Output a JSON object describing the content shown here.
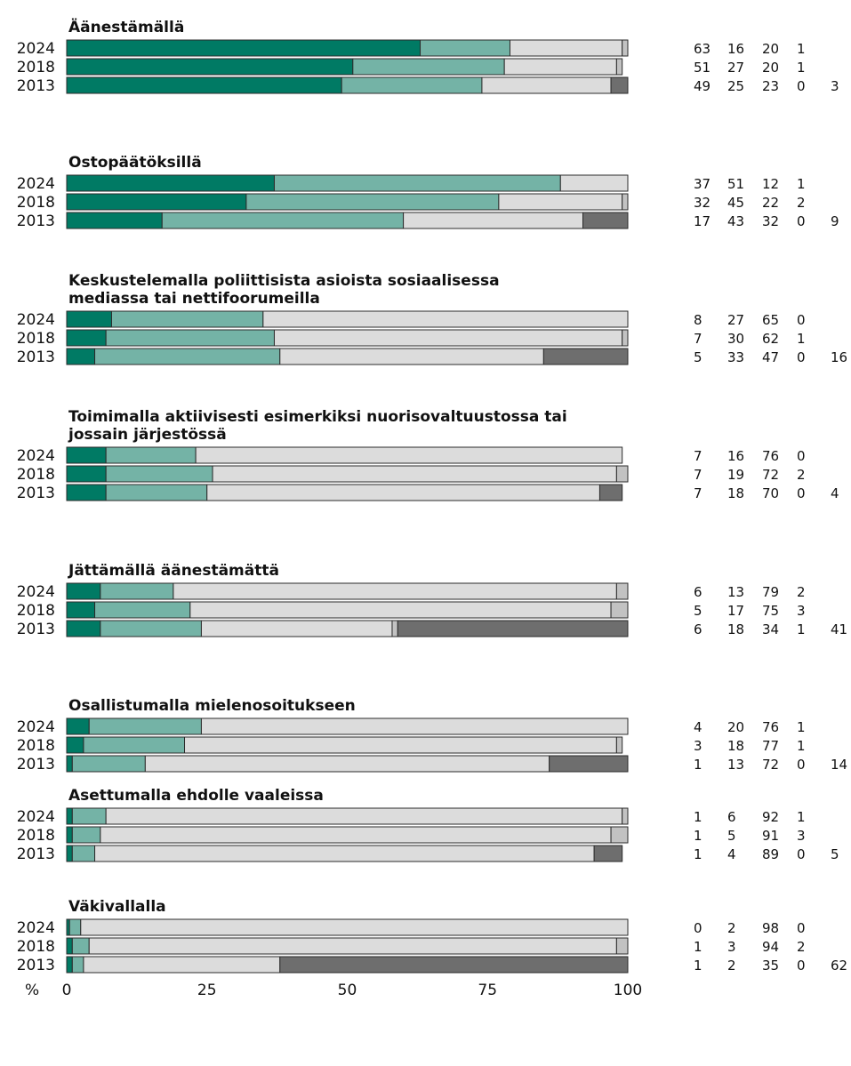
{
  "chart_data": {
    "type": "bar",
    "orientation": "horizontal",
    "stacked": true,
    "xlabel": "%",
    "xlim": [
      0,
      100
    ],
    "xticks": [
      0,
      25,
      50,
      75,
      100
    ],
    "series_colors": [
      "#007a64",
      "#74b3a6",
      "#dcdcdc",
      "#c2c2c2",
      "#6e6e6e"
    ],
    "groups": [
      {
        "title": "Äänestämällä",
        "rows": [
          {
            "year": "2024",
            "values": [
              63,
              16,
              20,
              1
            ],
            "labels": [
              "63",
              "16",
              "20",
              "1"
            ]
          },
          {
            "year": "2018",
            "values": [
              51,
              27,
              20,
              1
            ],
            "labels": [
              "51",
              "27",
              "20",
              "1"
            ]
          },
          {
            "year": "2013",
            "values": [
              49,
              25,
              23,
              0,
              3
            ],
            "labels": [
              "49",
              "25",
              "23",
              "0",
              "3"
            ]
          }
        ]
      },
      {
        "title": "Ostopäätöksillä",
        "rows": [
          {
            "year": "2024",
            "values": [
              37,
              51,
              12,
              1
            ],
            "labels": [
              "37",
              "51",
              "12",
              "1"
            ]
          },
          {
            "year": "2018",
            "values": [
              32,
              45,
              22,
              2
            ],
            "labels": [
              "32",
              "45",
              "22",
              "2"
            ]
          },
          {
            "year": "2013",
            "values": [
              17,
              43,
              32,
              0,
              9
            ],
            "labels": [
              "17",
              "43",
              "32",
              "0",
              "9"
            ]
          }
        ]
      },
      {
        "title": "Keskustelemalla poliittisista asioista sosiaalisessa\nmediassa tai nettifoorumeilla",
        "rows": [
          {
            "year": "2024",
            "values": [
              8,
              27,
              65,
              0
            ],
            "labels": [
              "8",
              "27",
              "65",
              "0"
            ]
          },
          {
            "year": "2018",
            "values": [
              7,
              30,
              62,
              1
            ],
            "labels": [
              "7",
              "30",
              "62",
              "1"
            ]
          },
          {
            "year": "2013",
            "values": [
              5,
              33,
              47,
              0,
              16
            ],
            "labels": [
              "5",
              "33",
              "47",
              "0",
              "16"
            ]
          }
        ]
      },
      {
        "title": "Toimimalla aktiivisesti esimerkiksi nuorisovaltuustossa tai\njossain järjestössä",
        "rows": [
          {
            "year": "2024",
            "values": [
              7,
              16,
              76,
              0
            ],
            "labels": [
              "7",
              "16",
              "76",
              "0"
            ]
          },
          {
            "year": "2018",
            "values": [
              7,
              19,
              72,
              2
            ],
            "labels": [
              "7",
              "19",
              "72",
              "2"
            ]
          },
          {
            "year": "2013",
            "values": [
              7,
              18,
              70,
              0,
              4
            ],
            "labels": [
              "7",
              "18",
              "70",
              "0",
              "4"
            ]
          }
        ]
      },
      {
        "title": "Jättämällä äänestämättä",
        "rows": [
          {
            "year": "2024",
            "values": [
              6,
              13,
              79,
              2
            ],
            "labels": [
              "6",
              "13",
              "79",
              "2"
            ]
          },
          {
            "year": "2018",
            "values": [
              5,
              17,
              75,
              3
            ],
            "labels": [
              "5",
              "17",
              "75",
              "3"
            ]
          },
          {
            "year": "2013",
            "values": [
              6,
              18,
              34,
              1,
              41
            ],
            "labels": [
              "6",
              "18",
              "34",
              "1",
              "41"
            ]
          }
        ]
      },
      {
        "title": "Osallistumalla mielenosoitukseen",
        "rows": [
          {
            "year": "2024",
            "values": [
              4,
              20,
              76,
              1
            ],
            "labels": [
              "4",
              "20",
              "76",
              "1"
            ]
          },
          {
            "year": "2018",
            "values": [
              3,
              18,
              77,
              1
            ],
            "labels": [
              "3",
              "18",
              "77",
              "1"
            ]
          },
          {
            "year": "2013",
            "values": [
              1,
              13,
              72,
              0,
              14
            ],
            "labels": [
              "1",
              "13",
              "72",
              "0",
              "14"
            ]
          }
        ]
      },
      {
        "title": "Asettumalla ehdolle vaaleissa",
        "rows": [
          {
            "year": "2024",
            "values": [
              1,
              6,
              92,
              1
            ],
            "labels": [
              "1",
              "6",
              "92",
              "1"
            ]
          },
          {
            "year": "2018",
            "values": [
              1,
              5,
              91,
              3
            ],
            "labels": [
              "1",
              "5",
              "91",
              "3"
            ]
          },
          {
            "year": "2013",
            "values": [
              1,
              4,
              89,
              0,
              5
            ],
            "labels": [
              "1",
              "4",
              "89",
              "0",
              "5"
            ]
          }
        ]
      },
      {
        "title": "Väkivallalla",
        "rows": [
          {
            "year": "2024",
            "values": [
              0.5,
              2,
              98,
              0
            ],
            "labels": [
              "0",
              "2",
              "98",
              "0"
            ]
          },
          {
            "year": "2018",
            "values": [
              1,
              3,
              94,
              2
            ],
            "labels": [
              "1",
              "3",
              "94",
              "2"
            ]
          },
          {
            "year": "2013",
            "values": [
              1,
              2,
              35,
              0,
              62
            ],
            "labels": [
              "1",
              "2",
              "35",
              "0",
              "62"
            ]
          }
        ]
      }
    ]
  }
}
